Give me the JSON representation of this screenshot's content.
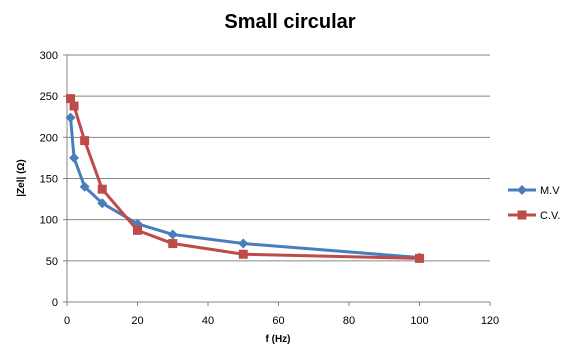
{
  "chart_data": {
    "type": "line",
    "title": "Small circular",
    "xlabel": "f (Hz)",
    "ylabel": "|Zel| (Ω)",
    "xlim": [
      0,
      120
    ],
    "ylim": [
      0,
      300
    ],
    "xticks": [
      0,
      20,
      40,
      60,
      80,
      100,
      120
    ],
    "yticks": [
      0,
      50,
      100,
      150,
      200,
      250,
      300
    ],
    "grid": "horizontal",
    "legend_position": "right",
    "series": [
      {
        "name": "M.V",
        "color": "#4a7ebb",
        "marker": "diamond",
        "x": [
          1,
          2,
          5,
          10,
          20,
          30,
          50,
          100
        ],
        "y": [
          224,
          175,
          140,
          120,
          95,
          82,
          71,
          54
        ]
      },
      {
        "name": "C.V.",
        "color": "#be4b48",
        "marker": "square",
        "x": [
          1,
          2,
          5,
          10,
          20,
          30,
          50,
          100
        ],
        "y": [
          247,
          238,
          196,
          137,
          87,
          71,
          58,
          53
        ]
      }
    ]
  }
}
